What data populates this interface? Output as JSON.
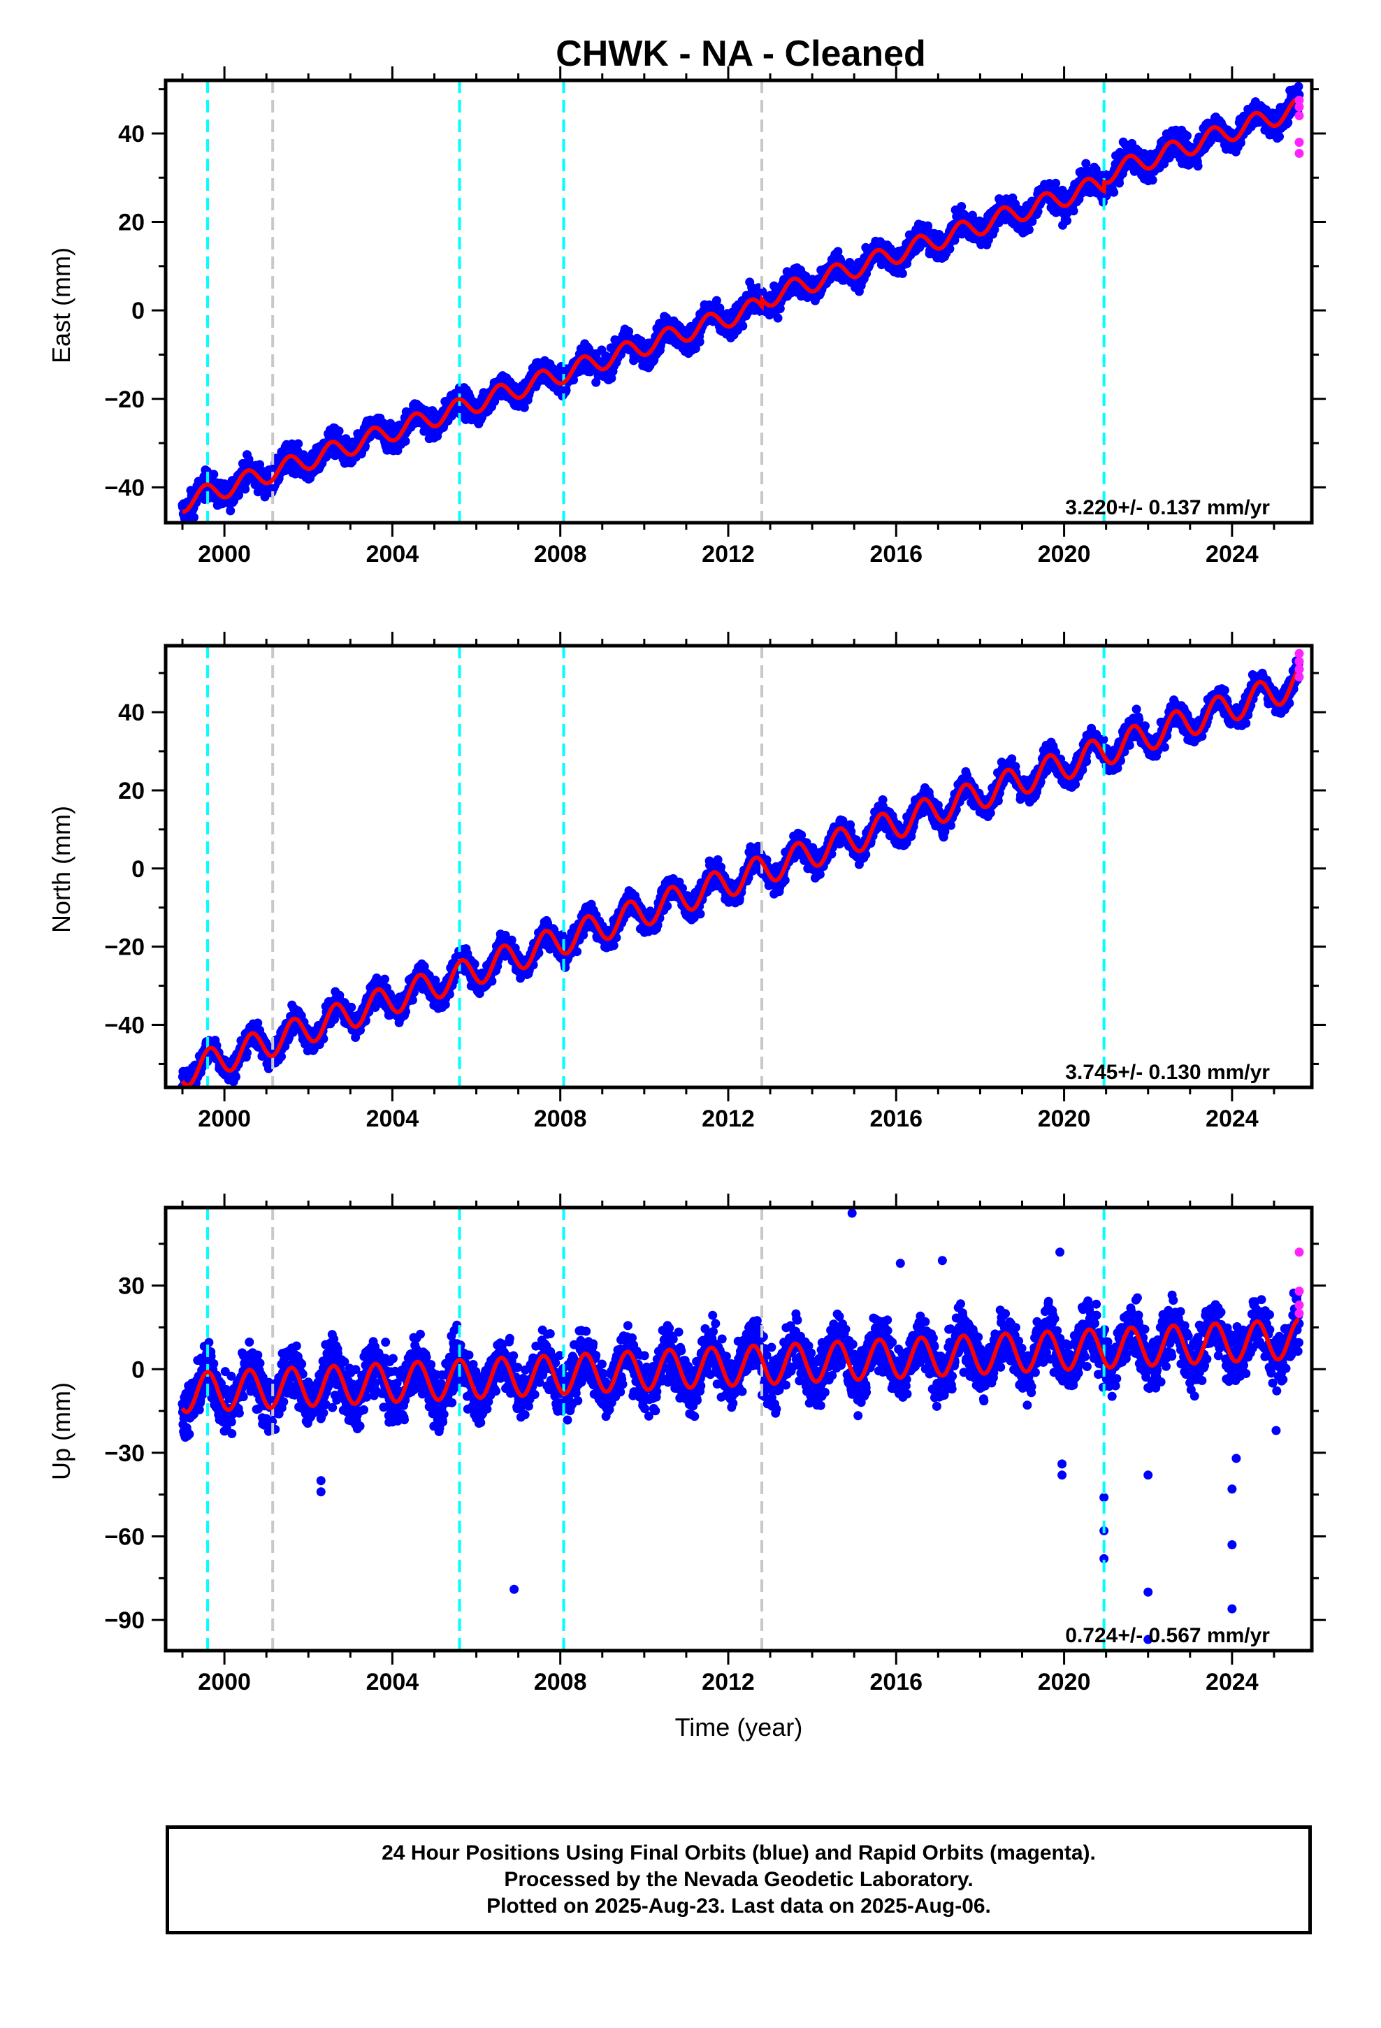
{
  "title": "CHWK  - NA - Cleaned",
  "xlabel": "Time (year)",
  "footer": {
    "line1": "24 Hour Positions Using Final Orbits (blue) and Rapid Orbits (magenta).",
    "line2": "Processed by the Nevada Geodetic Laboratory.",
    "line3": "Plotted on 2025-Aug-23. Last data on 2025-Aug-06."
  },
  "colors": {
    "final_orbits": "#0000ff",
    "rapid_orbits": "#ff22ff",
    "model": "#ff0000",
    "equipment_change": "#00ffff",
    "other_event": "#c8c8c8"
  },
  "chart_data": [
    {
      "type": "scatter",
      "ylabel": "East (mm)",
      "rate_text": "3.220+/- 0.137 mm/yr",
      "xlim": [
        1998.6,
        2025.9
      ],
      "ylim": [
        -48,
        52
      ],
      "xticks": [
        2000,
        2004,
        2008,
        2012,
        2016,
        2020,
        2024
      ],
      "yticks": [
        -40,
        -20,
        0,
        20,
        40
      ],
      "grid": false,
      "model": {
        "start_year": 1999.0,
        "end_year": 2025.6,
        "rate_mm_per_yr": 3.22,
        "value_at_2012": 0.2,
        "annual_amplitude": 2.2,
        "annual_peak": 0.55
      },
      "vlines": [
        {
          "x": 1999.6,
          "kind": "equipment_change"
        },
        {
          "x": 2001.15,
          "kind": "other_event"
        },
        {
          "x": 2005.6,
          "kind": "equipment_change"
        },
        {
          "x": 2008.08,
          "kind": "equipment_change"
        },
        {
          "x": 2012.8,
          "kind": "other_event"
        },
        {
          "x": 2020.95,
          "kind": "equipment_change"
        }
      ],
      "offsets": [
        {
          "x": 2012.8,
          "mm": 1.5
        },
        {
          "x": 2020.95,
          "mm": 2.0
        }
      ],
      "noise_mm": 1.5,
      "outliers": [],
      "rapid_points": [
        [
          2025.6,
          44.0
        ],
        [
          2025.6,
          38.0
        ],
        [
          2025.6,
          35.5
        ],
        [
          2025.6,
          47.5
        ],
        [
          2025.6,
          46.0
        ]
      ]
    },
    {
      "type": "scatter",
      "ylabel": "North (mm)",
      "rate_text": "3.745+/- 0.130 mm/yr",
      "xlim": [
        1998.6,
        2025.9
      ],
      "ylim": [
        -56,
        57
      ],
      "xticks": [
        2000,
        2004,
        2008,
        2012,
        2016,
        2020,
        2024
      ],
      "yticks": [
        -40,
        -20,
        0,
        20,
        40
      ],
      "grid": false,
      "model": {
        "start_year": 1999.0,
        "end_year": 2025.6,
        "rate_mm_per_yr": 3.745,
        "value_at_2012": -3.5,
        "annual_amplitude": 3.8,
        "annual_peak": 0.65
      },
      "vlines": [
        {
          "x": 1999.6,
          "kind": "equipment_change"
        },
        {
          "x": 2001.15,
          "kind": "other_event"
        },
        {
          "x": 2005.6,
          "kind": "equipment_change"
        },
        {
          "x": 2008.08,
          "kind": "equipment_change"
        },
        {
          "x": 2012.8,
          "kind": "other_event"
        },
        {
          "x": 2020.95,
          "kind": "equipment_change"
        }
      ],
      "offsets": [],
      "noise_mm": 1.6,
      "outliers": [],
      "rapid_points": [
        [
          2025.6,
          49.0
        ],
        [
          2025.6,
          51.0
        ],
        [
          2025.6,
          53.0
        ],
        [
          2025.6,
          55.0
        ]
      ]
    },
    {
      "type": "scatter",
      "ylabel": "Up (mm)",
      "rate_text": "0.724+/- 0.567 mm/yr",
      "xlim": [
        1998.6,
        2025.9
      ],
      "ylim": [
        -101,
        58
      ],
      "xticks": [
        2000,
        2004,
        2008,
        2012,
        2016,
        2020,
        2024
      ],
      "yticks": [
        -90,
        -60,
        -30,
        0,
        30
      ],
      "grid": false,
      "model": {
        "start_year": 1999.0,
        "end_year": 2025.6,
        "rate_mm_per_yr": 0.724,
        "value_at_2012": 1.0,
        "annual_amplitude": 7.0,
        "annual_peak": 0.6
      },
      "vlines": [
        {
          "x": 1999.6,
          "kind": "equipment_change"
        },
        {
          "x": 2001.15,
          "kind": "other_event"
        },
        {
          "x": 2005.6,
          "kind": "equipment_change"
        },
        {
          "x": 2008.08,
          "kind": "equipment_change"
        },
        {
          "x": 2012.8,
          "kind": "other_event"
        },
        {
          "x": 2020.95,
          "kind": "equipment_change"
        }
      ],
      "offsets": [],
      "noise_mm": 5.0,
      "outliers": [
        [
          2006.9,
          -79
        ],
        [
          2002.3,
          -44
        ],
        [
          2002.3,
          -40
        ],
        [
          2014.95,
          56
        ],
        [
          2019.95,
          -34
        ],
        [
          2019.95,
          -38
        ],
        [
          2020.95,
          -46
        ],
        [
          2020.95,
          -58
        ],
        [
          2020.95,
          -68
        ],
        [
          2022.0,
          -80
        ],
        [
          2022.0,
          -97
        ],
        [
          2022.0,
          -38
        ],
        [
          2024.0,
          -43
        ],
        [
          2024.0,
          -63
        ],
        [
          2024.0,
          -86
        ],
        [
          2024.1,
          -32
        ],
        [
          2025.05,
          -22
        ],
        [
          2016.1,
          38
        ],
        [
          2017.1,
          39
        ],
        [
          2019.9,
          42
        ]
      ],
      "rapid_points": [
        [
          2025.6,
          42.0
        ],
        [
          2025.6,
          28.0
        ],
        [
          2025.6,
          23.0
        ],
        [
          2025.6,
          20.0
        ]
      ]
    }
  ]
}
